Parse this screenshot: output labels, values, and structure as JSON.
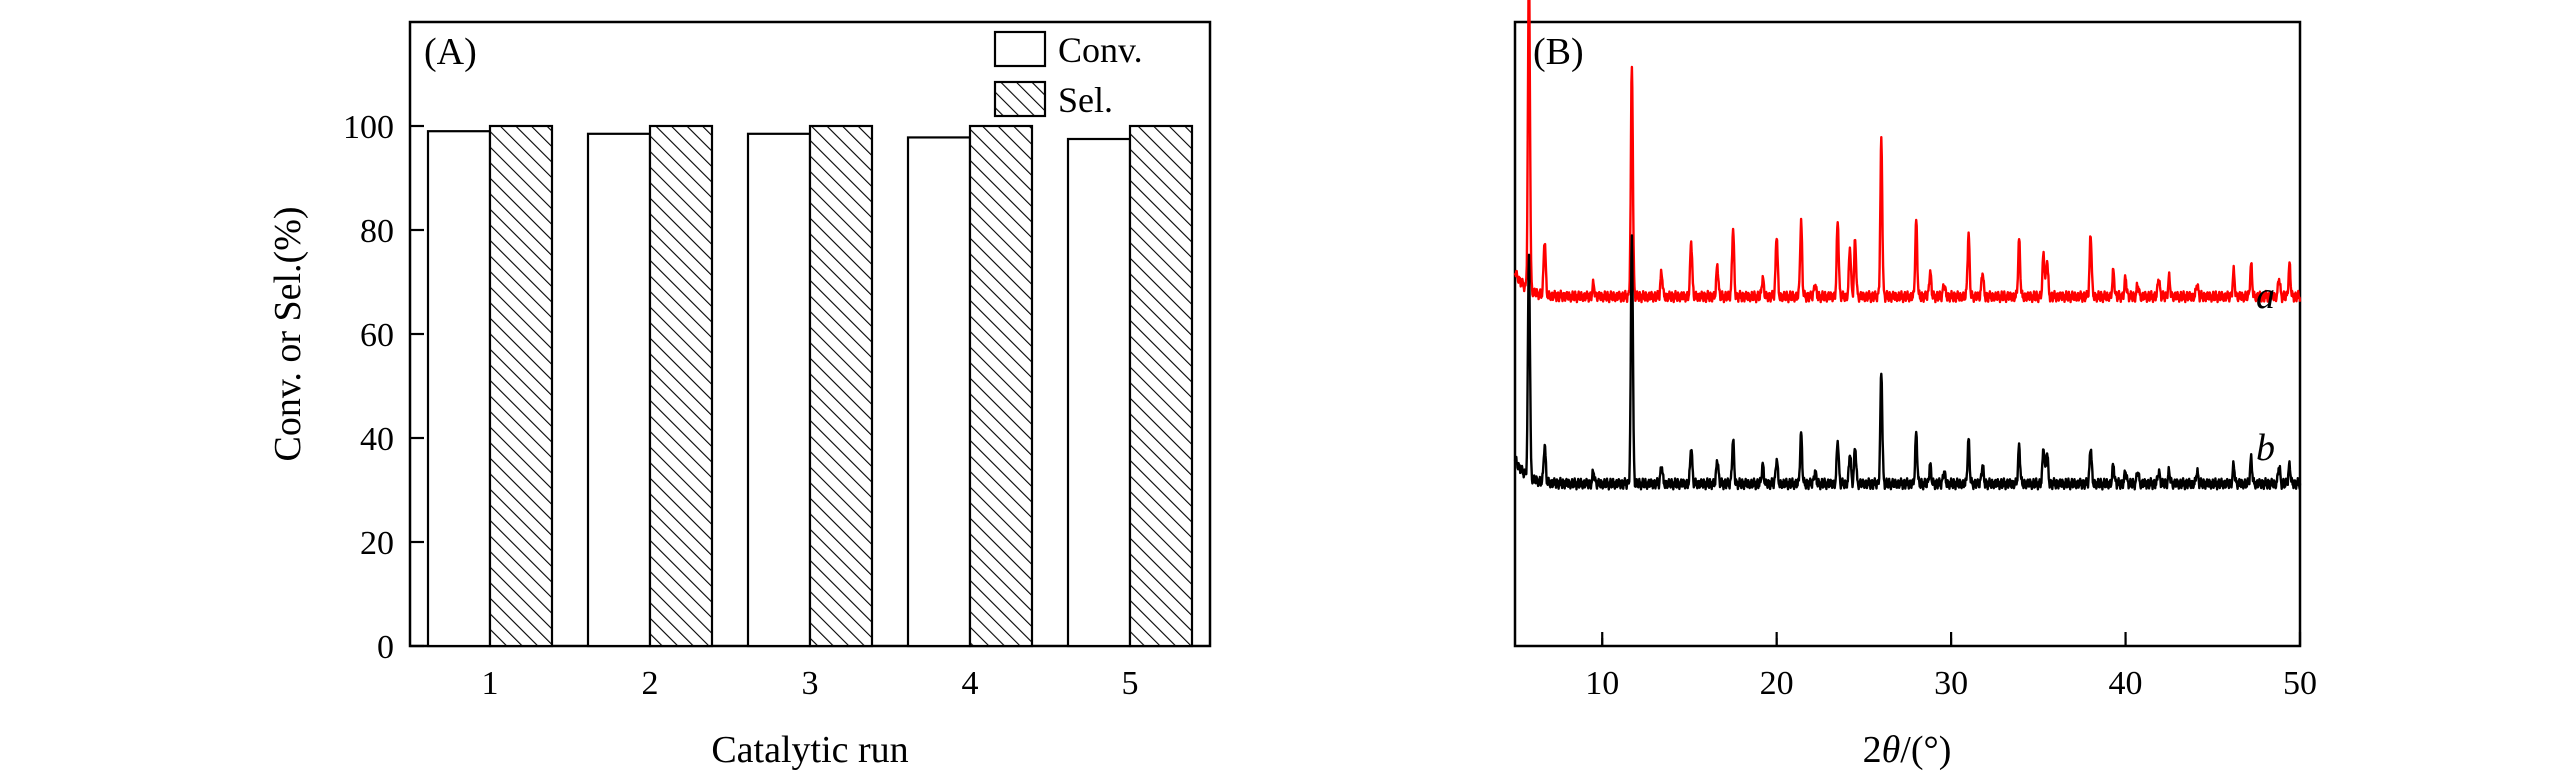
{
  "chart_data": [
    {
      "type": "bar",
      "panel_label": "(A)",
      "xlabel": "Catalytic run",
      "ylabel": "Conv. or Sel.(%)",
      "categories": [
        "1",
        "2",
        "3",
        "4",
        "5"
      ],
      "ylim": [
        0,
        120
      ],
      "yticks": [
        0,
        20,
        40,
        60,
        80,
        100
      ],
      "series": [
        {
          "name": "Conv.",
          "fill": "none",
          "values": [
            99,
            98.5,
            98.5,
            97.8,
            97.5
          ]
        },
        {
          "name": "Sel.",
          "fill": "hatched",
          "values": [
            100,
            100,
            100,
            100,
            100
          ]
        }
      ],
      "legend_position": "top-right"
    },
    {
      "type": "line",
      "panel_label": "(B)",
      "xlabel_prefix": "2",
      "xlabel_var": "θ",
      "xlabel_suffix": "/(°)",
      "xlim": [
        5,
        50
      ],
      "xticks": [
        10,
        20,
        30,
        40,
        50
      ],
      "y_axis": "intensity (a.u.), unlabeled",
      "series": [
        {
          "name": "a",
          "color": "#ff0000",
          "baseline": 56,
          "peaks": [
            [
              5.8,
              52
            ],
            [
              6.7,
              9
            ],
            [
              9.5,
              2
            ],
            [
              11.7,
              37
            ],
            [
              13.4,
              4
            ],
            [
              15.1,
              9
            ],
            [
              16.6,
              5
            ],
            [
              17.5,
              11
            ],
            [
              19.2,
              3
            ],
            [
              20.0,
              10
            ],
            [
              21.4,
              12
            ],
            [
              22.2,
              2
            ],
            [
              23.5,
              12
            ],
            [
              24.2,
              8
            ],
            [
              24.5,
              9
            ],
            [
              26.0,
              25
            ],
            [
              28.0,
              12
            ],
            [
              28.8,
              4
            ],
            [
              29.6,
              2
            ],
            [
              31.0,
              10
            ],
            [
              31.8,
              4
            ],
            [
              33.9,
              9
            ],
            [
              35.3,
              7
            ],
            [
              35.5,
              6
            ],
            [
              38.0,
              10
            ],
            [
              39.3,
              4
            ],
            [
              40.0,
              3
            ],
            [
              40.7,
              2
            ],
            [
              41.9,
              3
            ],
            [
              42.5,
              3
            ],
            [
              44.1,
              2
            ],
            [
              46.2,
              4
            ],
            [
              47.2,
              5
            ],
            [
              48.8,
              3
            ],
            [
              49.4,
              5
            ]
          ]
        },
        {
          "name": "b",
          "color": "#000000",
          "baseline": 26,
          "peaks": [
            [
              5.8,
              36
            ],
            [
              6.7,
              6
            ],
            [
              9.5,
              2
            ],
            [
              11.7,
              40
            ],
            [
              13.4,
              3
            ],
            [
              15.1,
              6
            ],
            [
              16.6,
              4
            ],
            [
              17.5,
              7
            ],
            [
              19.2,
              3
            ],
            [
              20.0,
              4
            ],
            [
              21.4,
              8
            ],
            [
              22.2,
              2
            ],
            [
              23.5,
              7
            ],
            [
              24.2,
              5
            ],
            [
              24.5,
              6
            ],
            [
              26.0,
              18
            ],
            [
              28.0,
              8
            ],
            [
              28.8,
              3
            ],
            [
              29.6,
              2
            ],
            [
              31.0,
              7
            ],
            [
              31.8,
              3
            ],
            [
              33.9,
              6
            ],
            [
              35.3,
              6
            ],
            [
              35.5,
              5
            ],
            [
              38.0,
              6
            ],
            [
              39.3,
              3
            ],
            [
              40.0,
              2
            ],
            [
              40.7,
              2
            ],
            [
              41.9,
              2
            ],
            [
              42.5,
              2
            ],
            [
              44.1,
              2
            ],
            [
              46.2,
              3
            ],
            [
              47.2,
              4
            ],
            [
              48.8,
              3
            ],
            [
              49.4,
              3
            ]
          ]
        }
      ]
    }
  ]
}
